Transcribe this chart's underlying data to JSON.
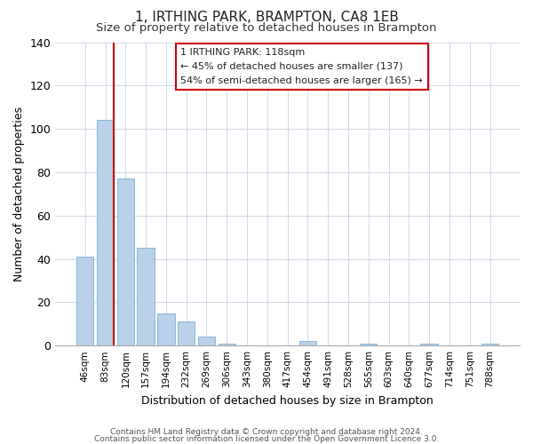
{
  "title": "1, IRTHING PARK, BRAMPTON, CA8 1EB",
  "subtitle": "Size of property relative to detached houses in Brampton",
  "xlabel": "Distribution of detached houses by size in Brampton",
  "ylabel": "Number of detached properties",
  "bar_labels": [
    "46sqm",
    "83sqm",
    "120sqm",
    "157sqm",
    "194sqm",
    "232sqm",
    "269sqm",
    "306sqm",
    "343sqm",
    "380sqm",
    "417sqm",
    "454sqm",
    "491sqm",
    "528sqm",
    "565sqm",
    "603sqm",
    "640sqm",
    "677sqm",
    "714sqm",
    "751sqm",
    "788sqm"
  ],
  "bar_heights": [
    41,
    104,
    77,
    45,
    15,
    11,
    4,
    1,
    0,
    0,
    0,
    2,
    0,
    0,
    1,
    0,
    0,
    1,
    0,
    0,
    1
  ],
  "bar_color": "#b8d0e8",
  "bar_edge_color": "#7aafd4",
  "highlight_line_color": "#cc0000",
  "highlight_line_bar_index": 1,
  "ylim": [
    0,
    140
  ],
  "yticks": [
    0,
    20,
    40,
    60,
    80,
    100,
    120,
    140
  ],
  "annotation_text_line1": "1 IRTHING PARK: 118sqm",
  "annotation_text_line2": "← 45% of detached houses are smaller (137)",
  "annotation_text_line3": "54% of semi-detached houses are larger (165) →",
  "annotation_box_color": "#ffffff",
  "annotation_box_edge": "#cc0000",
  "footer_line1": "Contains HM Land Registry data © Crown copyright and database right 2024.",
  "footer_line2": "Contains public sector information licensed under the Open Government Licence 3.0.",
  "title_fontsize": 11,
  "subtitle_fontsize": 9.5,
  "ylabel_fontsize": 9,
  "xlabel_fontsize": 9
}
